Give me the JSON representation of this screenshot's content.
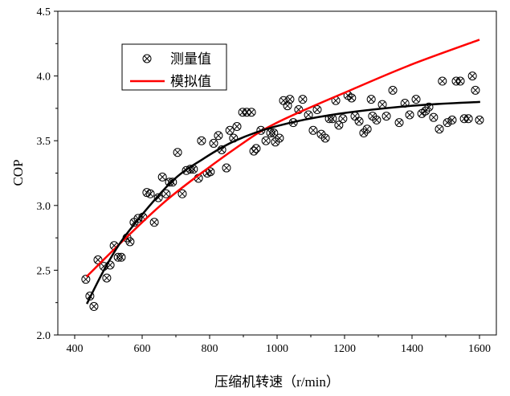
{
  "chart_data": {
    "type": "scatter",
    "title": "",
    "xlabel": "压缩机转速（r/min）",
    "ylabel": "COP",
    "xlim": [
      350,
      1650
    ],
    "ylim": [
      2.0,
      4.5
    ],
    "xticks": [
      400,
      600,
      800,
      1000,
      1200,
      1400,
      1600
    ],
    "yticks": [
      "2.0",
      "2.5",
      "3.0",
      "3.5",
      "4.0",
      "4.5"
    ],
    "grid": false,
    "legend_position": "top-left",
    "series": [
      {
        "name": "测量值",
        "kind": "scatter",
        "marker": "circle-x",
        "color": "#000000",
        "points": [
          [
            433,
            2.43
          ],
          [
            445,
            2.3
          ],
          [
            457,
            2.22
          ],
          [
            469,
            2.58
          ],
          [
            486,
            2.53
          ],
          [
            495,
            2.44
          ],
          [
            505,
            2.54
          ],
          [
            517,
            2.69
          ],
          [
            529,
            2.6
          ],
          [
            538,
            2.6
          ],
          [
            555,
            2.75
          ],
          [
            564,
            2.72
          ],
          [
            576,
            2.87
          ],
          [
            588,
            2.9
          ],
          [
            602,
            2.91
          ],
          [
            614,
            3.1
          ],
          [
            624,
            3.09
          ],
          [
            636,
            2.87
          ],
          [
            648,
            3.06
          ],
          [
            660,
            3.22
          ],
          [
            671,
            3.09
          ],
          [
            681,
            3.18
          ],
          [
            690,
            3.18
          ],
          [
            705,
            3.41
          ],
          [
            719,
            3.09
          ],
          [
            731,
            3.27
          ],
          [
            743,
            3.28
          ],
          [
            752,
            3.28
          ],
          [
            767,
            3.21
          ],
          [
            776,
            3.5
          ],
          [
            793,
            3.25
          ],
          [
            802,
            3.26
          ],
          [
            812,
            3.48
          ],
          [
            826,
            3.54
          ],
          [
            836,
            3.43
          ],
          [
            850,
            3.29
          ],
          [
            860,
            3.58
          ],
          [
            871,
            3.52
          ],
          [
            881,
            3.61
          ],
          [
            898,
            3.72
          ],
          [
            910,
            3.72
          ],
          [
            924,
            3.72
          ],
          [
            931,
            3.42
          ],
          [
            938,
            3.44
          ],
          [
            952,
            3.58
          ],
          [
            967,
            3.5
          ],
          [
            981,
            3.56
          ],
          [
            990,
            3.56
          ],
          [
            995,
            3.49
          ],
          [
            1007,
            3.52
          ],
          [
            1019,
            3.81
          ],
          [
            1031,
            3.77
          ],
          [
            1038,
            3.82
          ],
          [
            1048,
            3.64
          ],
          [
            1064,
            3.74
          ],
          [
            1076,
            3.82
          ],
          [
            1093,
            3.7
          ],
          [
            1107,
            3.58
          ],
          [
            1119,
            3.74
          ],
          [
            1131,
            3.55
          ],
          [
            1143,
            3.52
          ],
          [
            1155,
            3.67
          ],
          [
            1164,
            3.67
          ],
          [
            1174,
            3.81
          ],
          [
            1183,
            3.62
          ],
          [
            1195,
            3.67
          ],
          [
            1210,
            3.85
          ],
          [
            1221,
            3.83
          ],
          [
            1231,
            3.69
          ],
          [
            1243,
            3.65
          ],
          [
            1257,
            3.56
          ],
          [
            1267,
            3.59
          ],
          [
            1279,
            3.82
          ],
          [
            1283,
            3.69
          ],
          [
            1295,
            3.66
          ],
          [
            1312,
            3.78
          ],
          [
            1324,
            3.69
          ],
          [
            1343,
            3.89
          ],
          [
            1362,
            3.64
          ],
          [
            1379,
            3.79
          ],
          [
            1393,
            3.7
          ],
          [
            1412,
            3.82
          ],
          [
            1429,
            3.71
          ],
          [
            1440,
            3.73
          ],
          [
            1450,
            3.76
          ],
          [
            1464,
            3.68
          ],
          [
            1481,
            3.59
          ],
          [
            1490,
            3.96
          ],
          [
            1505,
            3.64
          ],
          [
            1519,
            3.66
          ],
          [
            1531,
            3.96
          ],
          [
            1543,
            3.96
          ],
          [
            1555,
            3.67
          ],
          [
            1567,
            3.67
          ],
          [
            1579,
            4.0
          ],
          [
            1588,
            3.89
          ],
          [
            1600,
            3.66
          ]
        ]
      },
      {
        "name": "模拟值",
        "kind": "line",
        "color": "#ff0000",
        "points": [
          [
            435,
            2.45
          ],
          [
            560,
            2.77
          ],
          [
            686,
            3.07
          ],
          [
            876,
            3.44
          ],
          [
            1000,
            3.64
          ],
          [
            1226,
            3.9
          ],
          [
            1400,
            4.09
          ],
          [
            1600,
            4.28
          ]
        ]
      },
      {
        "kind": "line",
        "color": "#000000",
        "points": [
          [
            436,
            2.24
          ],
          [
            495,
            2.54
          ],
          [
            560,
            2.8
          ],
          [
            686,
            3.18
          ],
          [
            781,
            3.36
          ],
          [
            876,
            3.5
          ],
          [
            995,
            3.61
          ],
          [
            1162,
            3.7
          ],
          [
            1400,
            3.77
          ],
          [
            1602,
            3.8
          ]
        ]
      }
    ]
  }
}
